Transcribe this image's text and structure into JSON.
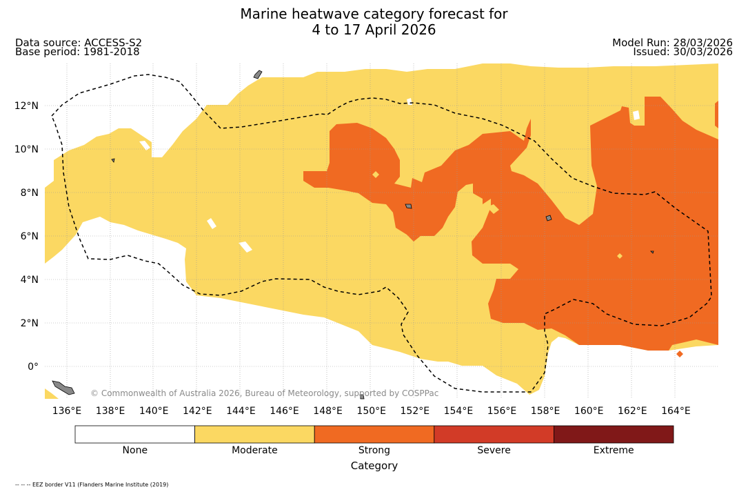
{
  "header": {
    "title_line1": "Marine heatwave category forecast for",
    "title_line2": "4 to 17 April 2026",
    "data_source": "Data source: ACCESS-S2",
    "base_period": "Base period: 1981-2018",
    "model_run": "Model Run: 28/03/2026",
    "issued": "Issued: 30/03/2026"
  },
  "map": {
    "lon_labels": [
      "136°E",
      "138°E",
      "140°E",
      "142°E",
      "144°E",
      "146°E",
      "148°E",
      "150°E",
      "152°E",
      "154°E",
      "156°E",
      "158°E",
      "160°E",
      "162°E",
      "164°E"
    ],
    "lat_labels": [
      "12°N",
      "10°N",
      "8°N",
      "6°N",
      "4°N",
      "2°N",
      "0°"
    ],
    "lon_range": [
      135,
      166
    ],
    "lat_range": [
      -1.5,
      14
    ],
    "copyright": "© Commonwealth of Australia 2026, Bureau of Meteorology, supported by COSPPac",
    "eez_note": "-- -- -- EEZ border V11 (Flanders Marine Institute (2019)"
  },
  "legend": {
    "title": "Category",
    "items": [
      {
        "label": "None",
        "color": "#ffffff"
      },
      {
        "label": "Moderate",
        "color": "#fbd862"
      },
      {
        "label": "Strong",
        "color": "#f06a22"
      },
      {
        "label": "Severe",
        "color": "#d23b27"
      },
      {
        "label": "Extreme",
        "color": "#801818"
      }
    ]
  },
  "colors": {
    "moderate": "#fbd862",
    "strong": "#f06a22",
    "land": "#888888",
    "grid": "#999999"
  }
}
